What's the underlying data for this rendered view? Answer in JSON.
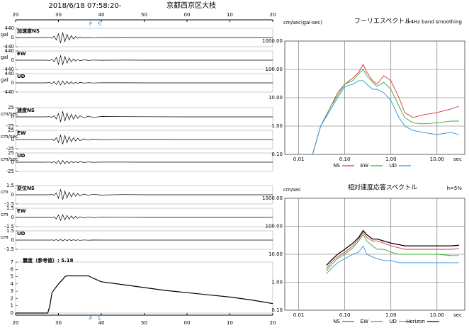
{
  "chart_data": [
    {
      "type": "line",
      "title": "2018/6/18 07:58:20-",
      "subtitle": "京都西京区大枝",
      "xlim": [
        20,
        80
      ],
      "xticks": [
        20,
        30,
        40,
        50,
        {
          "value": 60,
          "label": "00"
        },
        {
          "value": 70,
          "label": "10"
        },
        {
          "value": 80,
          "label": "20"
        }
      ],
      "phases": [
        {
          "label": "P",
          "value": 37.5
        },
        {
          "label": "S",
          "value": 39.5
        }
      ],
      "x": [
        20,
        27,
        28,
        28.5,
        29,
        29.5,
        30,
        30.5,
        31,
        31.5,
        32,
        32.5,
        33,
        33.5,
        34,
        34.5,
        35,
        36,
        37,
        38,
        40,
        45,
        50,
        60,
        70,
        80
      ],
      "series": [
        {
          "name": "加速度NS",
          "unit": "gal",
          "color": "#000000",
          "ylim": [
            -440,
            440
          ],
          "yticks": [
            440,
            0,
            -440
          ],
          "values": [
            0,
            0,
            10,
            -30,
            60,
            -120,
            180,
            -260,
            240,
            -200,
            150,
            -120,
            90,
            -70,
            50,
            -40,
            30,
            -20,
            15,
            -10,
            5,
            3,
            0,
            0,
            0,
            0
          ]
        },
        {
          "name": "EW",
          "unit": "gal",
          "color": "#000000",
          "ylim": [
            -440,
            440
          ],
          "yticks": [
            440,
            0,
            -440
          ],
          "values": [
            0,
            0,
            -10,
            40,
            -70,
            140,
            -200,
            230,
            -220,
            180,
            -140,
            110,
            -80,
            60,
            -45,
            35,
            -25,
            18,
            -12,
            8,
            -4,
            2,
            0,
            0,
            0,
            0
          ]
        },
        {
          "name": "UD",
          "unit": "gal",
          "color": "#000000",
          "ylim": [
            -440,
            440
          ],
          "yticks": [
            440,
            0,
            -440
          ],
          "values": [
            0,
            0,
            15,
            -40,
            60,
            -80,
            90,
            -100,
            95,
            -80,
            70,
            -60,
            50,
            -40,
            30,
            -25,
            20,
            -15,
            10,
            -8,
            4,
            2,
            0,
            0,
            0,
            0
          ]
        },
        {
          "name": "速度NS",
          "unit": "cm/sec",
          "color": "#000000",
          "ylim": [
            -25,
            25
          ],
          "yticks": [
            25,
            0,
            -25
          ],
          "values": [
            0,
            0,
            0.5,
            -1.5,
            3,
            -6,
            9,
            -14,
            15,
            -12,
            10,
            -8,
            7,
            -6,
            5,
            -4,
            3,
            -2.5,
            2,
            -1.5,
            1,
            0.5,
            0.3,
            0,
            0,
            0
          ]
        },
        {
          "name": "EW",
          "unit": "cm/sec",
          "color": "#000000",
          "ylim": [
            -25,
            25
          ],
          "yticks": [
            25,
            0,
            -25
          ],
          "values": [
            0,
            0,
            -0.5,
            1.5,
            -3,
            5,
            -8,
            12,
            -13,
            11,
            -9,
            8,
            -6,
            5,
            -4,
            3.5,
            -3,
            2,
            -1.5,
            1,
            -0.8,
            0.4,
            0.2,
            0,
            0,
            0
          ]
        },
        {
          "name": "UD",
          "unit": "cm/sec",
          "color": "#000000",
          "ylim": [
            -25,
            25
          ],
          "yticks": [
            25,
            0,
            -25
          ],
          "values": [
            0,
            0,
            0.3,
            -1,
            2,
            -3,
            4,
            -5,
            5,
            -4,
            3.5,
            -3,
            2.5,
            -2,
            1.5,
            -1.2,
            1,
            -0.8,
            0.6,
            -0.4,
            0.2,
            0.1,
            0,
            0,
            0,
            0
          ]
        },
        {
          "name": "変位NS",
          "unit": "cm",
          "color": "#000000",
          "ylim": [
            -1.5,
            1.5
          ],
          "yticks": [
            1.5,
            0,
            -1.5
          ],
          "values": [
            0,
            0,
            0,
            0.05,
            -0.1,
            0.3,
            -0.6,
            0.9,
            -0.8,
            0.6,
            -0.5,
            0.4,
            -0.35,
            0.3,
            -0.25,
            0.2,
            -0.15,
            0.12,
            -0.1,
            0.08,
            -0.05,
            0.03,
            0,
            0,
            0,
            0
          ]
        },
        {
          "name": "EW",
          "unit": "cm",
          "color": "#000000",
          "ylim": [
            -1.5,
            1.5
          ],
          "yticks": [
            1.5,
            0,
            -1.5
          ],
          "values": [
            0,
            0,
            0,
            -0.05,
            0.1,
            -0.25,
            0.4,
            -0.5,
            0.45,
            -0.4,
            0.35,
            -0.3,
            0.25,
            -0.2,
            0.18,
            -0.15,
            0.12,
            -0.1,
            0.08,
            -0.05,
            0.03,
            0.02,
            0,
            0,
            0,
            0
          ]
        },
        {
          "name": "UD",
          "unit": "cm",
          "color": "#000000",
          "ylim": [
            -1.5,
            1.5
          ],
          "yticks": [
            1.5,
            0,
            -1.5
          ],
          "values": [
            0,
            0,
            0,
            0.02,
            -0.05,
            0.08,
            -0.12,
            0.15,
            -0.14,
            0.12,
            -0.1,
            0.08,
            -0.07,
            0.06,
            -0.05,
            0.04,
            -0.03,
            0.02,
            -0.02,
            0.01,
            0,
            0,
            0,
            0,
            0,
            0
          ]
        }
      ]
    },
    {
      "type": "line",
      "note": "震度（参考値）: 5.18",
      "color": "#000000",
      "xlim": [
        20,
        80
      ],
      "ylim": [
        0,
        7
      ],
      "yticks": [
        0,
        1,
        2,
        3,
        4,
        5,
        6,
        7
      ],
      "x": [
        20,
        27.5,
        28,
        28.5,
        29,
        30,
        31,
        31.5,
        32,
        34,
        37,
        38,
        40,
        45,
        50,
        55,
        60,
        65,
        70,
        75,
        80
      ],
      "values": [
        0,
        0,
        1.0,
        2.8,
        3.2,
        4.0,
        4.6,
        5.0,
        5.1,
        5.1,
        5.1,
        4.8,
        4.3,
        3.9,
        3.5,
        3.1,
        2.8,
        2.5,
        2.2,
        1.8,
        1.3
      ]
    },
    {
      "type": "line",
      "title": "フーリエスペクトル",
      "subtitle": "0.4Hz band smoothing",
      "y_label": "cm/sec(gal·sec)",
      "x_label": "sec",
      "log_x": true,
      "log_y": true,
      "xlim": [
        0.005,
        40
      ],
      "ylim": [
        0.1,
        1000
      ],
      "xticks": [
        {
          "value": 0.01,
          "label": "0.01"
        },
        {
          "value": 0.1,
          "label": "0.10"
        },
        {
          "value": 1,
          "label": "1.00"
        },
        {
          "value": 10,
          "label": "10.00"
        }
      ],
      "yticks": [
        {
          "value": 0.1,
          "label": "0.10"
        },
        {
          "value": 1,
          "label": "1.00"
        },
        {
          "value": 10,
          "label": "10.00"
        },
        {
          "value": 100,
          "label": "100.00"
        },
        {
          "value": 1000,
          "label": "1000.00"
        }
      ],
      "x": [
        0.02,
        0.03,
        0.05,
        0.07,
        0.1,
        0.15,
        0.2,
        0.25,
        0.3,
        0.4,
        0.5,
        0.7,
        1,
        1.5,
        2,
        3,
        5,
        10,
        20,
        30
      ],
      "series": [
        {
          "name": "NS",
          "color": "#e03030",
          "values": [
            0.1,
            1,
            5,
            15,
            30,
            50,
            80,
            150,
            80,
            40,
            30,
            60,
            40,
            10,
            3,
            2,
            2.5,
            3,
            4,
            5
          ]
        },
        {
          "name": "EW",
          "color": "#30b030",
          "values": [
            0.1,
            1,
            5,
            12,
            30,
            40,
            70,
            100,
            60,
            35,
            25,
            35,
            20,
            5,
            2,
            1.3,
            1.2,
            1.3,
            1.5,
            1.5
          ]
        },
        {
          "name": "UD",
          "color": "#3090e0",
          "values": [
            0.1,
            1,
            4,
            10,
            25,
            30,
            40,
            40,
            30,
            20,
            20,
            15,
            8,
            2,
            1,
            0.7,
            0.6,
            0.5,
            0.6,
            0.5
          ]
        }
      ]
    },
    {
      "type": "line",
      "title": "相対速度応答スペクトル",
      "subtitle": "h=5%",
      "y_label": "cm/sec",
      "x_label": "sec",
      "log_x": true,
      "log_y": true,
      "xlim": [
        0.005,
        40
      ],
      "ylim": [
        0.1,
        1000
      ],
      "xticks": [
        {
          "value": 0.01,
          "label": "0.01"
        },
        {
          "value": 0.1,
          "label": "0.10"
        },
        {
          "value": 1,
          "label": "1.00"
        },
        {
          "value": 10,
          "label": "10.00"
        }
      ],
      "yticks": [
        {
          "value": 0.1,
          "label": "0.10"
        },
        {
          "value": 1,
          "label": "1.00"
        },
        {
          "value": 10,
          "label": "10.00"
        },
        {
          "value": 100,
          "label": "100.00"
        },
        {
          "value": 1000,
          "label": "1000.00"
        }
      ],
      "x": [
        0.04,
        0.05,
        0.07,
        0.1,
        0.15,
        0.2,
        0.25,
        0.3,
        0.4,
        0.5,
        0.7,
        1,
        1.5,
        2,
        3,
        5,
        10,
        20,
        30
      ],
      "series": [
        {
          "name": "NS",
          "color": "#e03030",
          "values": [
            3,
            5,
            8,
            12,
            20,
            35,
            60,
            40,
            30,
            30,
            25,
            20,
            17,
            15,
            15,
            15,
            15,
            15,
            16
          ]
        },
        {
          "name": "EW",
          "color": "#30b030",
          "values": [
            2.5,
            4,
            7,
            10,
            17,
            30,
            50,
            30,
            20,
            15,
            15,
            12,
            10,
            10,
            10,
            10,
            10,
            9,
            9
          ]
        },
        {
          "name": "UD",
          "color": "#3090e0",
          "values": [
            2,
            3,
            5,
            7,
            10,
            12,
            20,
            10,
            8,
            7,
            6,
            6,
            5,
            5,
            5,
            5,
            5,
            5,
            5
          ]
        },
        {
          "name": "Horizon",
          "color": "#000000",
          "values": [
            4,
            6,
            10,
            15,
            25,
            40,
            70,
            50,
            35,
            35,
            30,
            25,
            22,
            20,
            20,
            20,
            20,
            20,
            21
          ]
        }
      ]
    }
  ]
}
